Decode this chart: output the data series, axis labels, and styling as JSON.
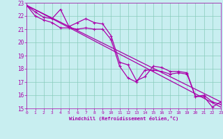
{
  "xlabel": "Windchill (Refroidissement éolien,°C)",
  "xlim": [
    0,
    23
  ],
  "ylim": [
    15,
    23
  ],
  "yticks": [
    15,
    16,
    17,
    18,
    19,
    20,
    21,
    22,
    23
  ],
  "xticks": [
    0,
    1,
    2,
    3,
    4,
    5,
    6,
    7,
    8,
    9,
    10,
    11,
    12,
    13,
    14,
    15,
    16,
    17,
    18,
    19,
    20,
    21,
    22,
    23
  ],
  "bg_color": "#c8eef0",
  "line_color": "#aa00aa",
  "grid_color": "#88ccbb",
  "series1": {
    "x": [
      0,
      1,
      2,
      3,
      4,
      5,
      6,
      7,
      8,
      9,
      10,
      11,
      12,
      13,
      14,
      15,
      16,
      17,
      18,
      19,
      20,
      21,
      22,
      23
    ],
    "y": [
      22.8,
      22.3,
      21.9,
      21.8,
      22.5,
      21.2,
      21.5,
      21.8,
      21.5,
      21.4,
      20.5,
      18.5,
      18.3,
      17.1,
      17.4,
      18.2,
      18.1,
      17.8,
      17.8,
      17.7,
      15.9,
      15.9,
      15.1,
      15.5
    ]
  },
  "series2": {
    "x": [
      0,
      1,
      2,
      3,
      4,
      5,
      6,
      7,
      8,
      9,
      10,
      11,
      12,
      13,
      14,
      15,
      16,
      17,
      18,
      19,
      20,
      21,
      22,
      23
    ],
    "y": [
      22.8,
      22.0,
      21.7,
      21.5,
      21.1,
      21.1,
      21.0,
      21.1,
      21.0,
      21.0,
      20.2,
      18.2,
      17.3,
      17.0,
      17.9,
      17.9,
      17.8,
      17.6,
      17.7,
      17.6,
      15.9,
      16.0,
      15.5,
      15.3
    ]
  },
  "trend1": {
    "x": [
      0,
      23
    ],
    "y": [
      22.8,
      15.1
    ]
  },
  "trend2": {
    "x": [
      0,
      23
    ],
    "y": [
      22.8,
      15.5
    ]
  }
}
